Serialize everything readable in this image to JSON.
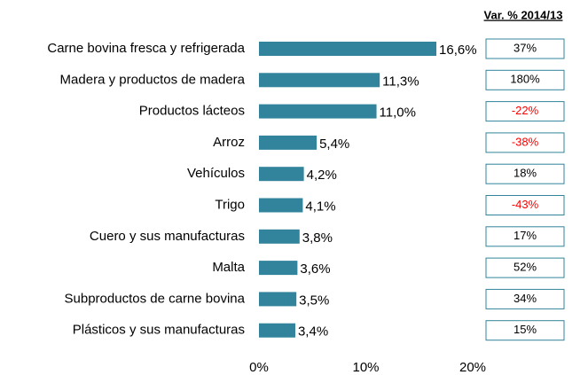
{
  "chart_data": {
    "type": "bar",
    "orientation": "horizontal",
    "categories": [
      "Carne bovina fresca y refrigerada",
      "Madera y  productos de madera",
      "Productos lácteos",
      "Arroz",
      "Vehículos",
      "Trigo",
      "Cuero y sus manufacturas",
      "Malta",
      "Subproductos de carne bovina",
      "Plásticos y sus manufacturas"
    ],
    "values": [
      16.6,
      11.3,
      11.0,
      5.4,
      4.2,
      4.1,
      3.8,
      3.6,
      3.5,
      3.4
    ],
    "value_labels": [
      "16,6%",
      "11,3%",
      "11,0%",
      "5,4%",
      "4,2%",
      "4,1%",
      "3,8%",
      "3,6%",
      "3,5%",
      "3,4%"
    ],
    "color": "#31849b",
    "xlim": [
      0,
      20
    ],
    "xticks": [
      {
        "value": 0,
        "label": "0%"
      },
      {
        "value": 10,
        "label": "10%"
      },
      {
        "value": 20,
        "label": "20%"
      }
    ],
    "variation": {
      "title": "Var. % 2014/13",
      "values": [
        37,
        180,
        -22,
        -38,
        18,
        -43,
        17,
        52,
        34,
        15
      ],
      "value_labels": [
        "37%",
        "180%",
        "-22%",
        "-38%",
        "18%",
        "-43%",
        "17%",
        "52%",
        "34%",
        "15%"
      ],
      "color": "#000000",
      "negative_color": "#ff0000"
    }
  }
}
